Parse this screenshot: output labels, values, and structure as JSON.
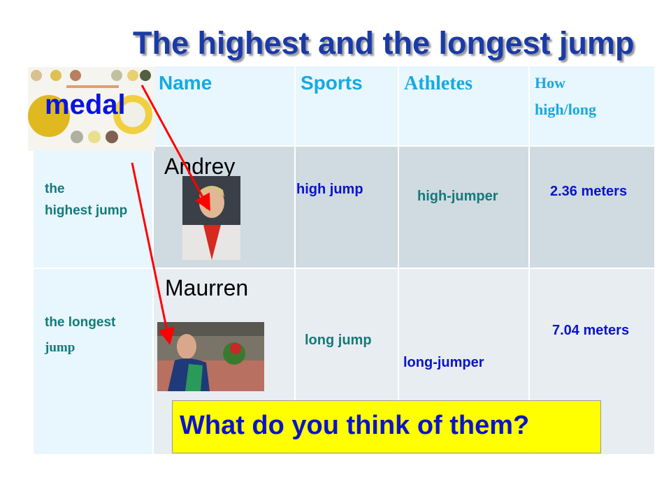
{
  "title": "The highest and the longest jump",
  "medal_label": "medal",
  "table": {
    "headers": [
      "Name",
      "Sports",
      "Athletes",
      "How high/long"
    ],
    "rows": [
      {
        "label_line1": "the",
        "label_line2": "highest jump",
        "name": "Andrey",
        "sport": "high jump",
        "athlete": "high-jumper",
        "measure": "2.36 meters"
      },
      {
        "label_line1": "the longest",
        "label_line2": "jump",
        "name": "Maurren",
        "sport": "long jump",
        "athlete": "long-jumper",
        "measure": "7.04 meters"
      }
    ]
  },
  "question": "What do you think of them?",
  "colors": {
    "header_text": "#17a9e1",
    "teal": "#137a7a",
    "blue": "#0a14c8",
    "highlight": "#ffff00",
    "arrow": "#ff0000"
  }
}
